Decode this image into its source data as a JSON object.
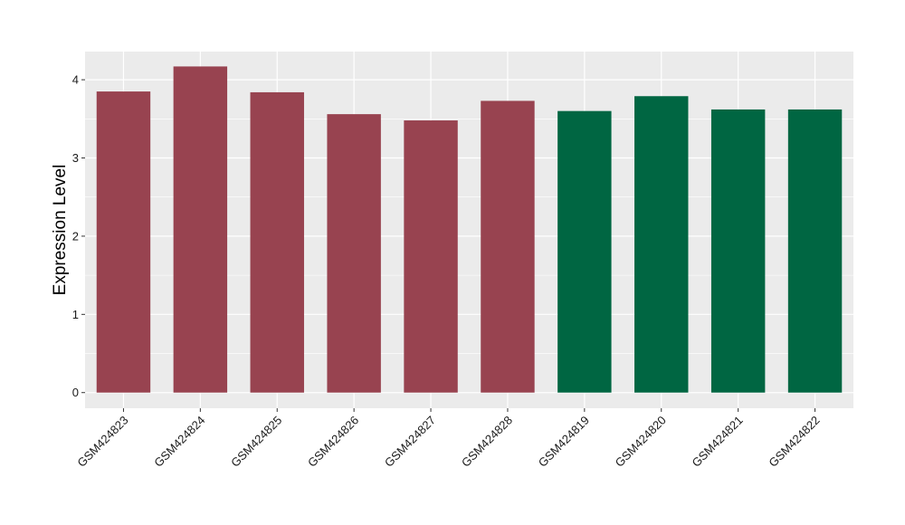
{
  "chart_data": {
    "type": "bar",
    "title": "",
    "xlabel": "",
    "ylabel": "Expression Level",
    "ylim": [
      -0.2,
      4.36
    ],
    "yticks": [
      0,
      1,
      2,
      3,
      4
    ],
    "grid": true,
    "legend": "none",
    "categories": [
      "GSM424823",
      "GSM424824",
      "GSM424825",
      "GSM424826",
      "GSM424827",
      "GSM424828",
      "GSM424819",
      "GSM424820",
      "GSM424821",
      "GSM424822"
    ],
    "values": [
      3.85,
      4.17,
      3.84,
      3.56,
      3.48,
      3.73,
      3.6,
      3.79,
      3.62,
      3.62
    ],
    "bar_colors": [
      "#984350",
      "#984350",
      "#984350",
      "#984350",
      "#984350",
      "#984350",
      "#006642",
      "#006642",
      "#006642",
      "#006642"
    ],
    "panel_background": "#ebebeb",
    "grid_color": "#ffffff"
  }
}
